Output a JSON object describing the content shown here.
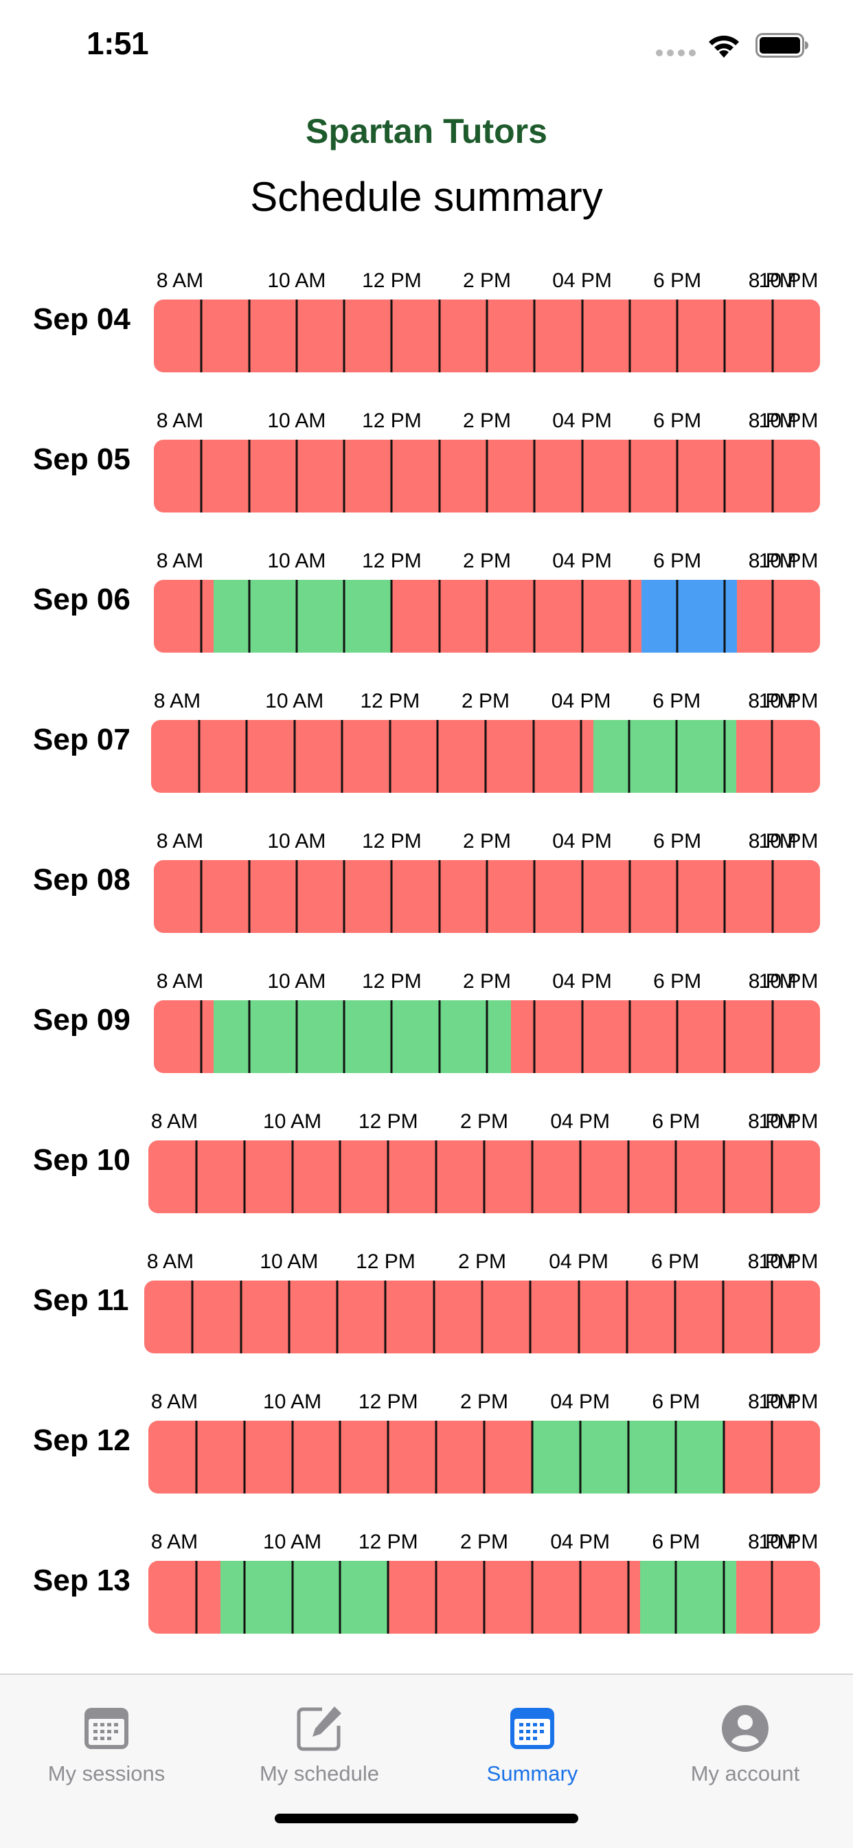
{
  "status_bar": {
    "time": "1:51"
  },
  "header": {
    "app_title": "Spartan Tutors",
    "page_title": "Schedule summary"
  },
  "hour_labels": [
    "8 AM",
    "10 AM",
    "12 PM",
    "2 PM",
    "04 PM",
    "6 PM",
    "8 PM",
    "10 PM"
  ],
  "colors": {
    "unavailable": "#fe7470",
    "available": "#70d88b",
    "booked": "#4a9ff5",
    "brand": "#1e5b2c",
    "tab_active": "#1a73e8",
    "tab_inactive": "#8e8e93"
  },
  "days": [
    {
      "label": "Sep 04",
      "segments": []
    },
    {
      "label": "Sep 05",
      "segments": []
    },
    {
      "label": "Sep 06",
      "segments": [
        {
          "start": "8:15 AM",
          "end": "12:00 PM",
          "status": "available"
        },
        {
          "start": "5:15 PM",
          "end": "7:15 PM",
          "status": "booked"
        }
      ]
    },
    {
      "label": "Sep 07",
      "segments": [
        {
          "start": "4:15 PM",
          "end": "7:15 PM",
          "status": "available"
        }
      ]
    },
    {
      "label": "Sep 08",
      "segments": []
    },
    {
      "label": "Sep 09",
      "segments": [
        {
          "start": "8:15 AM",
          "end": "2:30 PM",
          "status": "available"
        }
      ]
    },
    {
      "label": "Sep 10",
      "segments": []
    },
    {
      "label": "Sep 11",
      "segments": []
    },
    {
      "label": "Sep 12",
      "segments": [
        {
          "start": "3:00 PM",
          "end": "7:00 PM",
          "status": "available"
        }
      ]
    },
    {
      "label": "Sep 13",
      "segments": [
        {
          "start": "8:30 AM",
          "end": "12:00 PM",
          "status": "available"
        },
        {
          "start": "5:15 PM",
          "end": "7:15 PM",
          "status": "available"
        }
      ]
    }
  ],
  "tabs": [
    {
      "label": "My sessions",
      "icon": "calendar-icon",
      "active": false
    },
    {
      "label": "My schedule",
      "icon": "edit-icon",
      "active": false
    },
    {
      "label": "Summary",
      "icon": "calendar-grid-icon",
      "active": true
    },
    {
      "label": "My account",
      "icon": "account-icon",
      "active": false
    }
  ]
}
